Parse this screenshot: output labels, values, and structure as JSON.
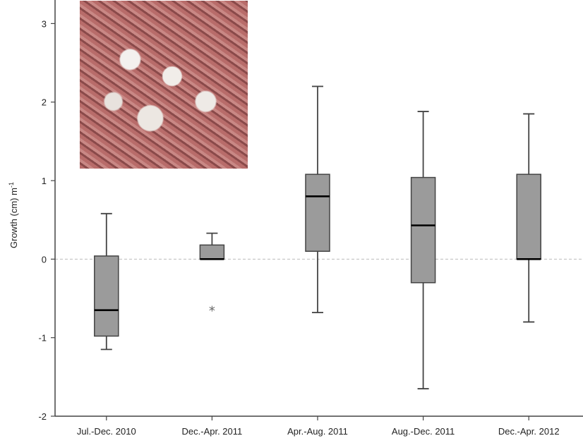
{
  "chart_data": {
    "type": "box",
    "title": "",
    "xlabel": "",
    "ylabel": "Growth (cm) m",
    "ylabel_superscript": "-1",
    "ylim": [
      -2,
      3.3
    ],
    "yticks": [
      -2,
      -1,
      0,
      1,
      2,
      3
    ],
    "ytick_labels": [
      "-2",
      "-1",
      "0",
      "1",
      "2",
      "3"
    ],
    "reference_line": 0,
    "categories": [
      "Jul.-Dec. 2010",
      "Dec.-Apr. 2011",
      "Apr.-Aug. 2011",
      "Aug.-Dec. 2011",
      "Dec.-Apr. 2012"
    ],
    "boxes": [
      {
        "min": -1.15,
        "q1": -0.98,
        "median": -0.65,
        "q3": 0.04,
        "max": 0.58,
        "outliers": []
      },
      {
        "min": 0.0,
        "q1": 0.0,
        "median": 0.0,
        "q3": 0.18,
        "max": 0.33,
        "outliers": [
          -0.63
        ]
      },
      {
        "min": -0.68,
        "q1": 0.1,
        "median": 0.8,
        "q3": 1.08,
        "max": 2.2,
        "outliers": []
      },
      {
        "min": -1.65,
        "q1": -0.3,
        "median": 0.43,
        "q3": 1.04,
        "max": 1.88,
        "outliers": []
      },
      {
        "min": -0.8,
        "q1": 0.0,
        "median": 0.0,
        "q3": 1.08,
        "max": 1.85,
        "outliers": []
      }
    ],
    "colors": {
      "box_fill": "#9b9b9b",
      "box_stroke": "#444444",
      "median": "#000000",
      "reference": "#bbbbbb"
    },
    "inset_image": "coral-photo"
  }
}
